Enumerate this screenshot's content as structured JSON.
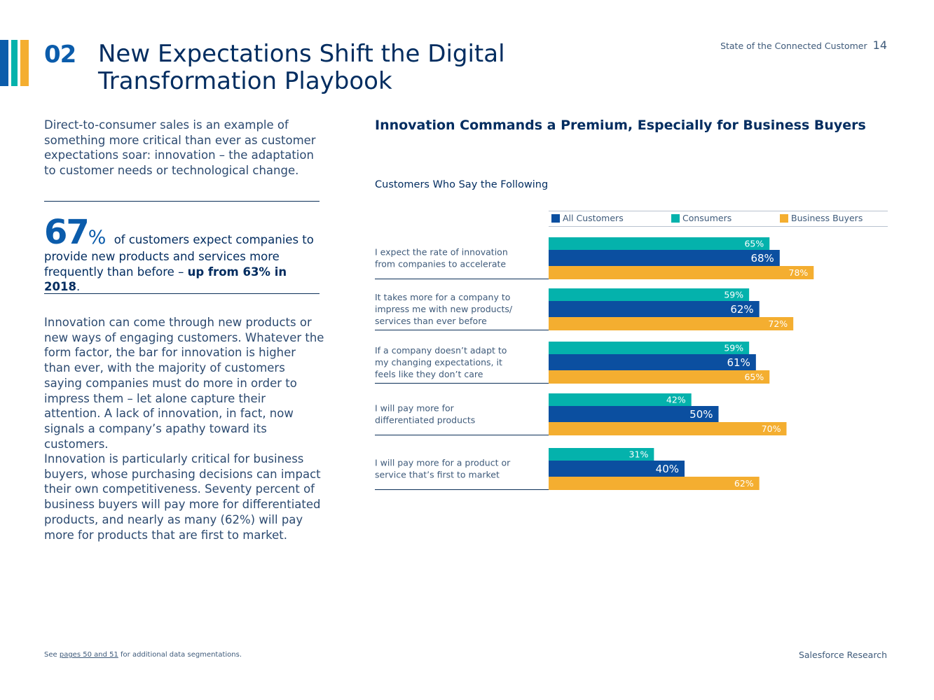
{
  "header": {
    "section_number": "02",
    "title_line1": "New Expectations Shift the Digital",
    "title_line2": "Transformation Playbook",
    "running_head": "State of the Connected Customer",
    "page_number": "14"
  },
  "colors": {
    "all_customers": "#0b4fa0",
    "consumers": "#04b2ac",
    "business_buyers": "#f4ae30",
    "stripe_1": "#0b5cab",
    "stripe_2": "#04b2ac",
    "stripe_3": "#f4ae30"
  },
  "left": {
    "intro": "Direct-to-consumer sales is an example of something more critical than ever as customer expectations soar: innovation – the adaptation to customer needs or technological change.",
    "stat_value": "67",
    "stat_unit": "%",
    "stat_text": "of customers expect companies to provide new products and services more frequently than before –",
    "stat_bold": "up from 63% in 2018",
    "stat_end": ".",
    "paragraph1": "Innovation can come through new products or new ways of engaging customers. Whatever the form factor, the bar for innovation is higher than ever, with the majority of customers saying companies must do more in order to impress them – let alone capture their attention. A lack of innovation, in fact, now signals a company’s apathy toward its customers.",
    "paragraph2": "Innovation is particularly critical for business buyers, whose purchasing decisions can impact their own competitiveness. Seventy percent of business buyers will pay more for differentiated products, and nearly as many (62%) will pay more for products that are first to market."
  },
  "chart_data": {
    "type": "bar",
    "orientation": "horizontal",
    "title": "Innovation Commands a Premium, Especially for Business Buyers",
    "subtitle": "Customers Who Say the Following",
    "categories": [
      [
        "I expect the rate of innovation",
        "from companies to accelerate"
      ],
      [
        "It takes more for a company to",
        "impress me with new products/",
        "services than ever before"
      ],
      [
        "If a company doesn’t adapt to",
        "my changing expectations, it",
        "feels like they don’t care"
      ],
      [
        "I will pay more for",
        "differentiated products"
      ],
      [
        "I will pay more for a product or",
        "service that’s first to market"
      ]
    ],
    "series": [
      {
        "name": "Consumers",
        "values": [
          65,
          59,
          59,
          42,
          31
        ]
      },
      {
        "name": "All Customers",
        "values": [
          68,
          62,
          61,
          50,
          40
        ]
      },
      {
        "name": "Business Buyers",
        "values": [
          78,
          72,
          65,
          70,
          62
        ]
      }
    ],
    "legend": [
      "All Customers",
      "Consumers",
      "Business Buyers"
    ],
    "value_suffix": "%",
    "xlim": [
      0,
      100
    ],
    "legend_position": "top"
  },
  "footer": {
    "note_before": "See",
    "note_link": "pages 50 and 51",
    "note_after": "for additional data segmentations.",
    "brand": "Salesforce Research"
  }
}
